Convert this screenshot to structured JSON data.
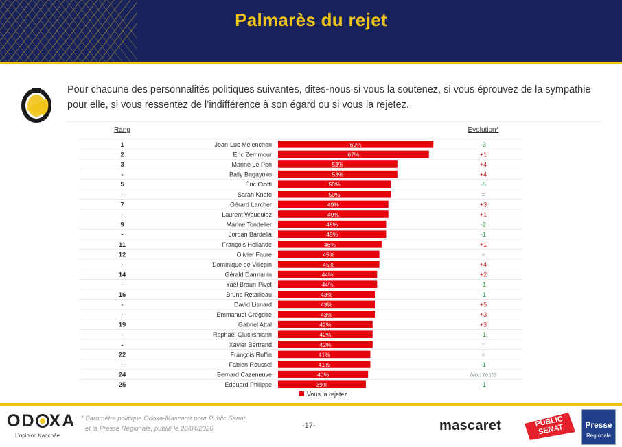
{
  "slide": {
    "title": "Palmarès du rejet",
    "question": "Pour chacune des personnalités politiques suivantes, dites-nous si vous la soutenez, si vous éprouvez de la sympathie pour elle, si vous ressentez de l’indifférence à son égard ou si vous la rejetez.",
    "page_number": "-17-",
    "source_line1": "* Baromètre politique Odoxa-Mascaret pour Public Sénat",
    "source_line2": "et la Presse Régionale, publié le 28/04/2026",
    "logo_odoxa_rest": "D",
    "logo_odoxa_end": "XA",
    "logo_odoxa_tagline": "L’opinion tranchée",
    "logo_mascaret": "mascaret",
    "logo_public_senat_1": "PUBLIC",
    "logo_public_senat_2": "SENAT",
    "logo_presse_1": "Presse",
    "logo_presse_2": "Régionale"
  },
  "colors": {
    "header_bg": "#17235a",
    "accent_yellow": "#f0c419",
    "bar_red": "#e5040c",
    "evo_positive": "#d62020",
    "evo_negative": "#2d9a4b",
    "evo_neutral": "#8a9a9a"
  },
  "chart_data": {
    "type": "bar",
    "orientation": "horizontal",
    "rank_header": "Rang",
    "evolution_header": "Evolution*",
    "legend": "Vous la rejetez",
    "value_suffix": "%",
    "xlim": [
      0,
      100
    ],
    "rows": [
      {
        "rank": "1",
        "name": "Jean-Luc Mélenchon",
        "value": 69,
        "evolution": "-3"
      },
      {
        "rank": "2",
        "name": "Eric Zemmour",
        "value": 67,
        "evolution": "+1"
      },
      {
        "rank": "3",
        "name": "Marine Le Pen",
        "value": 53,
        "evolution": "+4"
      },
      {
        "rank": "-",
        "name": "Bally Bagayoko",
        "value": 53,
        "evolution": "+4"
      },
      {
        "rank": "5",
        "name": "Éric Ciotti",
        "value": 50,
        "evolution": "-5"
      },
      {
        "rank": "-",
        "name": "Sarah Knafo",
        "value": 50,
        "evolution": "="
      },
      {
        "rank": "7",
        "name": "Gérard Larcher",
        "value": 49,
        "evolution": "+3"
      },
      {
        "rank": "-",
        "name": "Laurent Wauquiez",
        "value": 49,
        "evolution": "+1"
      },
      {
        "rank": "9",
        "name": "Marine Tondelier",
        "value": 48,
        "evolution": "-2"
      },
      {
        "rank": "-",
        "name": "Jordan Bardella",
        "value": 48,
        "evolution": "-1"
      },
      {
        "rank": "11",
        "name": "François Hollande",
        "value": 46,
        "evolution": "+1"
      },
      {
        "rank": "12",
        "name": "Olivier Faure",
        "value": 45,
        "evolution": "="
      },
      {
        "rank": "-",
        "name": "Dominique de Villepin",
        "value": 45,
        "evolution": "+4"
      },
      {
        "rank": "14",
        "name": "Gérald Darmanin",
        "value": 44,
        "evolution": "+2"
      },
      {
        "rank": "-",
        "name": "Yaël Braun-Pivet",
        "value": 44,
        "evolution": "-1"
      },
      {
        "rank": "16",
        "name": "Bruno Retailleau",
        "value": 43,
        "evolution": "-1"
      },
      {
        "rank": "-",
        "name": "David Lisnard",
        "value": 43,
        "evolution": "+5"
      },
      {
        "rank": "-",
        "name": "Emmanuel Grégoire",
        "value": 43,
        "evolution": "+3"
      },
      {
        "rank": "19",
        "name": "Gabriel Attal",
        "value": 42,
        "evolution": "+3"
      },
      {
        "rank": "-",
        "name": "Raphaël Glucksmann",
        "value": 42,
        "evolution": "-1"
      },
      {
        "rank": "-",
        "name": "Xavier Bertrand",
        "value": 42,
        "evolution": "="
      },
      {
        "rank": "22",
        "name": "François Ruffin",
        "value": 41,
        "evolution": "="
      },
      {
        "rank": "-",
        "name": "Fabien Roussel",
        "value": 41,
        "evolution": "-1"
      },
      {
        "rank": "24",
        "name": "Bernard Cazeneuve",
        "value": 40,
        "evolution": "Non testé"
      },
      {
        "rank": "25",
        "name": "Edouard Philippe",
        "value": 39,
        "evolution": "-1"
      }
    ]
  }
}
